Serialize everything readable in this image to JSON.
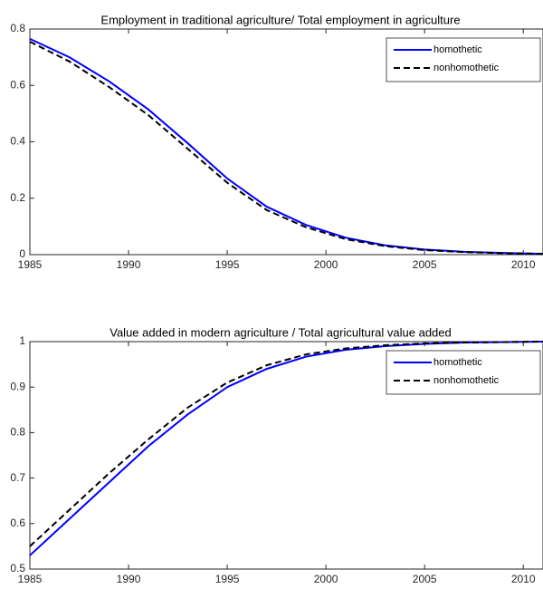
{
  "chart_data": [
    {
      "type": "line",
      "title": "Employment in traditional agriculture/ Total employment in agriculture",
      "x": [
        1985,
        1987,
        1989,
        1991,
        1993,
        1995,
        1997,
        1999,
        2001,
        2003,
        2005,
        2007,
        2009,
        2011
      ],
      "series": [
        {
          "name": "homothetic",
          "color": "#0000ff",
          "dash": false,
          "values": [
            0.765,
            0.7,
            0.615,
            0.515,
            0.395,
            0.27,
            0.17,
            0.105,
            0.06,
            0.033,
            0.018,
            0.01,
            0.006,
            0.003
          ]
        },
        {
          "name": "nonhomothetic",
          "color": "#000000",
          "dash": true,
          "values": [
            0.755,
            0.685,
            0.595,
            0.495,
            0.375,
            0.255,
            0.158,
            0.097,
            0.055,
            0.03,
            0.016,
            0.009,
            0.005,
            0.003
          ]
        }
      ],
      "xlim": [
        1985,
        2011
      ],
      "xticks": [
        1985,
        1990,
        1995,
        2000,
        2005,
        2010
      ],
      "ylim": [
        0,
        0.8
      ],
      "yticks": [
        0,
        0.2,
        0.4,
        0.6,
        0.8
      ],
      "legend": "top-right"
    },
    {
      "type": "line",
      "title": "Value added in modern agriculture / Total agricultural value added",
      "x": [
        1985,
        1987,
        1989,
        1991,
        1993,
        1995,
        1997,
        1999,
        2001,
        2003,
        2005,
        2007,
        2009,
        2011
      ],
      "series": [
        {
          "name": "homothetic",
          "color": "#0000ff",
          "dash": false,
          "values": [
            0.53,
            0.61,
            0.69,
            0.77,
            0.84,
            0.9,
            0.94,
            0.967,
            0.982,
            0.99,
            0.995,
            0.998,
            0.999,
            1.0
          ]
        },
        {
          "name": "nonhomothetic",
          "color": "#000000",
          "dash": true,
          "values": [
            0.55,
            0.63,
            0.71,
            0.785,
            0.855,
            0.91,
            0.948,
            0.972,
            0.985,
            0.992,
            0.996,
            0.998,
            0.999,
            1.0
          ]
        }
      ],
      "xlim": [
        1985,
        2011
      ],
      "xticks": [
        1985,
        1990,
        1995,
        2000,
        2005,
        2010
      ],
      "ylim": [
        0.5,
        1
      ],
      "yticks": [
        0.5,
        0.6,
        0.7,
        0.8,
        0.9,
        1
      ],
      "legend": "top-right"
    }
  ]
}
